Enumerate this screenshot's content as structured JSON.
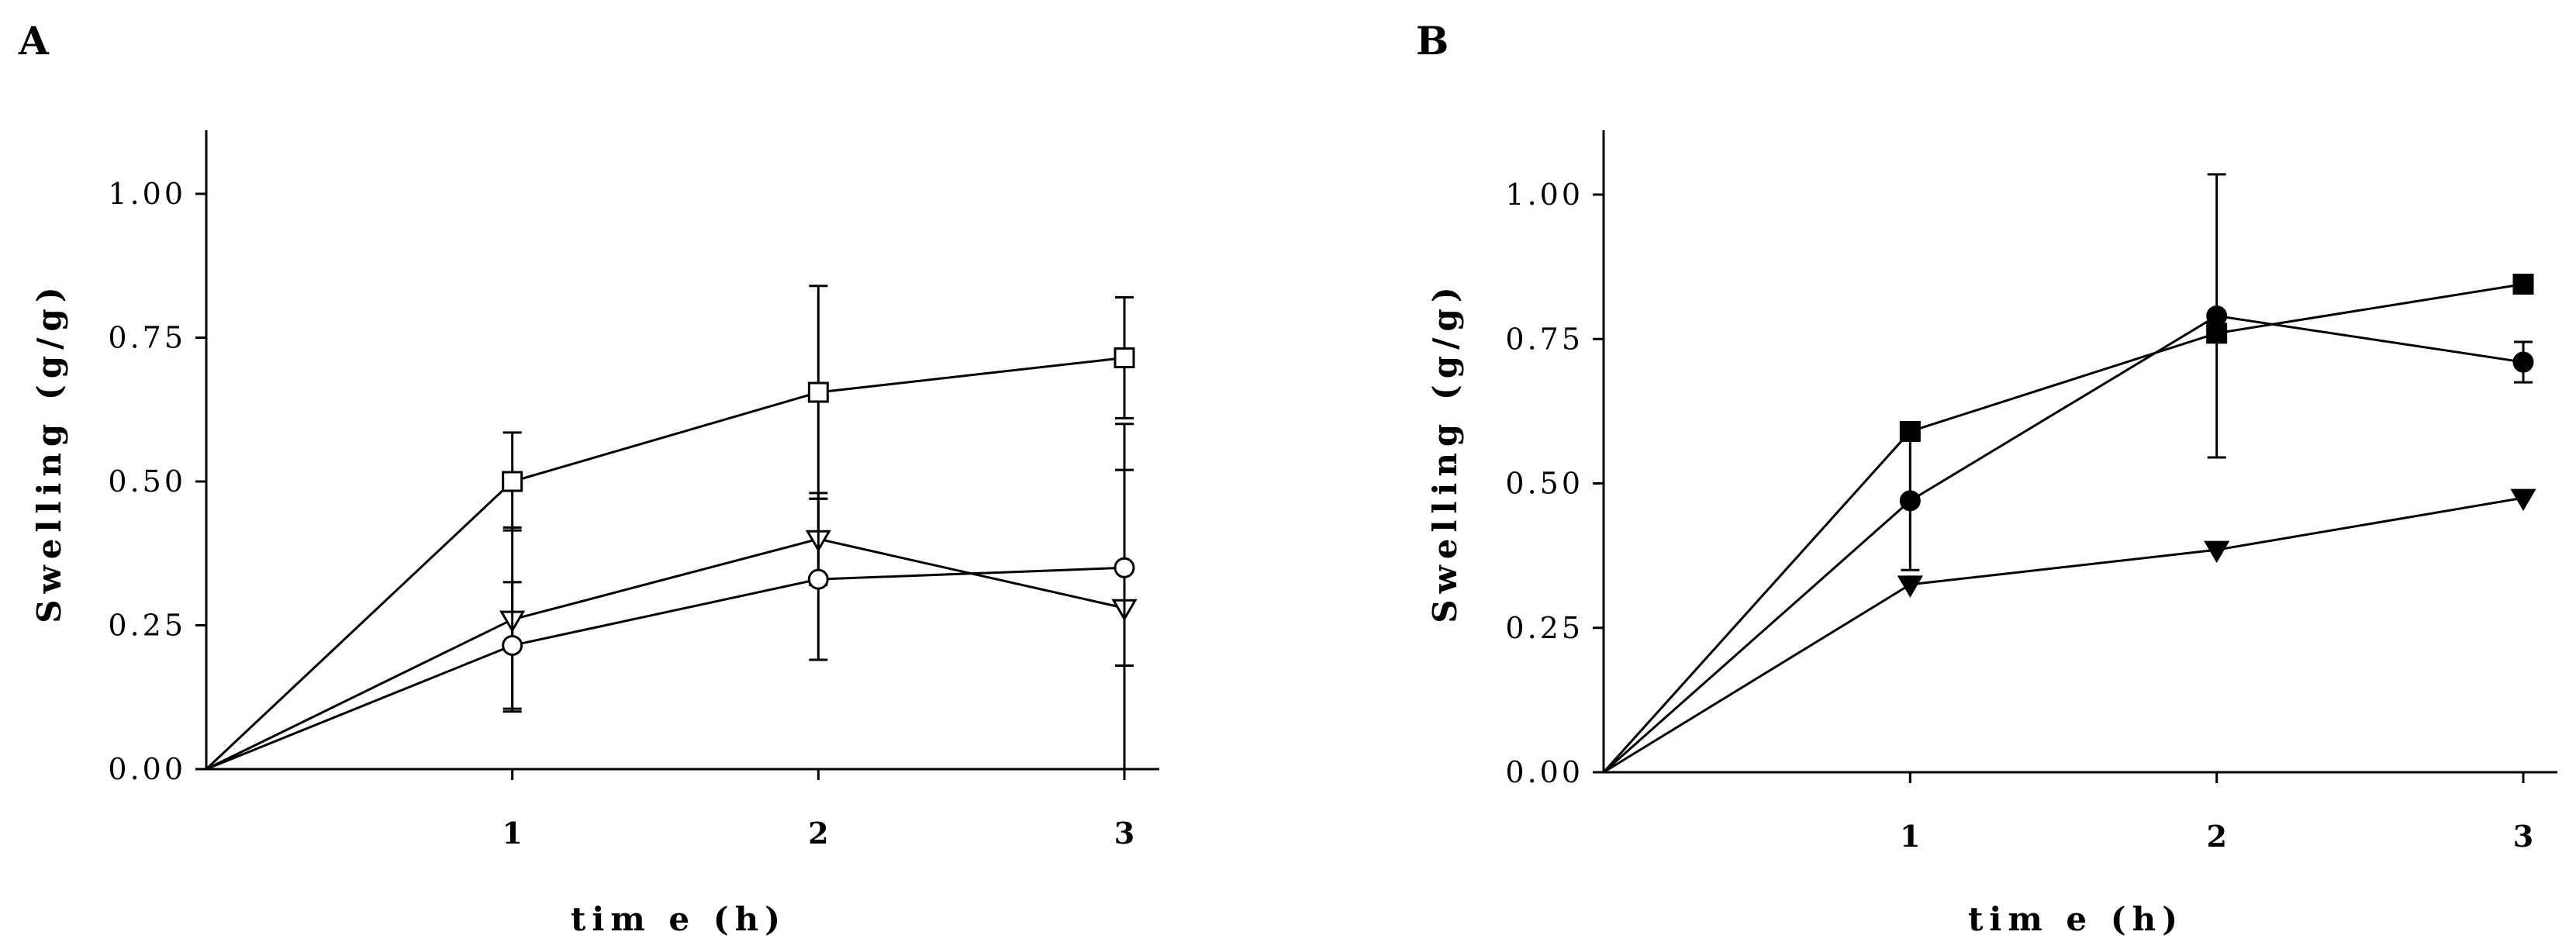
{
  "chart_data": [
    {
      "type": "line",
      "panel": "A",
      "xlabel": "tim e (h)",
      "ylabel": "Swelling (g/g)",
      "xlim": [
        0,
        3.05
      ],
      "ylim": [
        0,
        1.1
      ],
      "x_ticks": [
        1,
        2,
        3
      ],
      "x_tick_labels": [
        "1",
        "2",
        "3"
      ],
      "y_ticks": [
        0,
        0.25,
        0.5,
        0.75,
        1.0
      ],
      "y_tick_labels": [
        "0.00",
        "0.25",
        "0.50",
        "0.75",
        "1.00"
      ],
      "grid": false,
      "series": [
        {
          "name": "open-square",
          "marker": "square",
          "filled": false,
          "x": [
            0,
            1,
            2,
            3
          ],
          "y": [
            0,
            0.5,
            0.655,
            0.715
          ],
          "error": [
            0,
            0.085,
            0.185,
            0.105
          ]
        },
        {
          "name": "open-triangle-down",
          "marker": "triangle-down",
          "filled": false,
          "x": [
            0,
            1,
            2,
            3
          ],
          "y": [
            0,
            0.26,
            0.4,
            0.28
          ],
          "error": [
            0,
            0.16,
            0.08,
            0.32
          ]
        },
        {
          "name": "open-circle",
          "marker": "circle",
          "filled": false,
          "x": [
            0,
            1,
            2,
            3
          ],
          "y": [
            0,
            0.215,
            0.33,
            0.35
          ],
          "error": [
            0,
            0.11,
            0.14,
            0.17
          ]
        }
      ]
    },
    {
      "type": "line",
      "panel": "B",
      "xlabel": "tim e (h)",
      "ylabel": "Swelling (g/g)",
      "xlim": [
        0,
        3.05
      ],
      "ylim": [
        0,
        1.1
      ],
      "x_ticks": [
        1,
        2,
        3
      ],
      "x_tick_labels": [
        "1",
        "2",
        "3"
      ],
      "y_ticks": [
        0,
        0.25,
        0.5,
        0.75,
        1.0
      ],
      "y_tick_labels": [
        "0.00",
        "0.25",
        "0.50",
        "0.75",
        "1.00"
      ],
      "grid": false,
      "series": [
        {
          "name": "filled-square",
          "marker": "square",
          "filled": true,
          "x": [
            0,
            1,
            2,
            3
          ],
          "y": [
            0,
            0.59,
            0.76,
            0.845
          ],
          "error": [
            0,
            0,
            0,
            0
          ]
        },
        {
          "name": "filled-circle",
          "marker": "circle",
          "filled": true,
          "x": [
            0,
            1,
            2,
            3
          ],
          "y": [
            0,
            0.47,
            0.79,
            0.71
          ],
          "error": [
            0,
            0.12,
            0.245,
            0.035
          ]
        },
        {
          "name": "filled-triangle-down",
          "marker": "triangle-down",
          "filled": true,
          "x": [
            0,
            1,
            2,
            3
          ],
          "y": [
            0,
            0.325,
            0.385,
            0.475
          ],
          "error": [
            0,
            0,
            0,
            0
          ]
        }
      ]
    }
  ]
}
